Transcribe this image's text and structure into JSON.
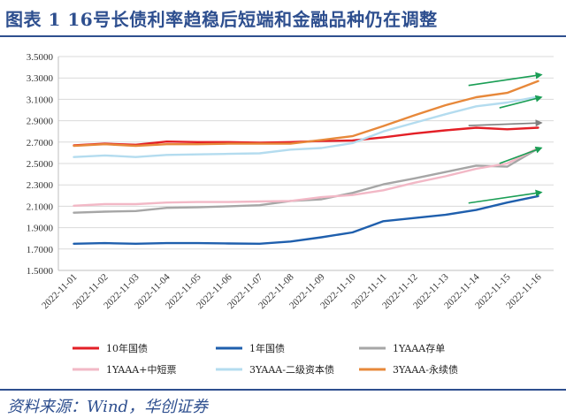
{
  "figure": {
    "title": "图表 1  16号长债利率趋稳后短端和金融品种仍在调整",
    "source": "资料来源：Wind，华创证券"
  },
  "chart_data": {
    "type": "line",
    "x": [
      "2022-11-01",
      "2022-11-02",
      "2022-11-03",
      "2022-11-04",
      "2022-11-05",
      "2022-11-06",
      "2022-11-07",
      "2022-11-08",
      "2022-11-09",
      "2022-11-10",
      "2022-11-11",
      "2022-11-12",
      "2022-11-13",
      "2022-11-14",
      "2022-11-15",
      "2022-11-16"
    ],
    "ylim": [
      1.5,
      3.5
    ],
    "yticks": [
      "1.5000",
      "1.7000",
      "1.9000",
      "2.1000",
      "2.3000",
      "2.5000",
      "2.7000",
      "2.9000",
      "3.1000",
      "3.3000",
      "3.5000"
    ],
    "grid": true,
    "legend_position": "bottom",
    "series": [
      {
        "name": "10年国债",
        "color": "#e31f26",
        "values": [
          2.67,
          2.685,
          2.675,
          2.705,
          2.7,
          2.7,
          2.695,
          2.7,
          2.71,
          2.715,
          2.745,
          2.78,
          2.81,
          2.835,
          2.82,
          2.835
        ]
      },
      {
        "name": "1年国债",
        "color": "#1f5fad",
        "values": [
          1.75,
          1.755,
          1.75,
          1.755,
          1.755,
          1.752,
          1.75,
          1.77,
          1.81,
          1.855,
          1.96,
          1.99,
          2.02,
          2.065,
          2.135,
          2.195
        ]
      },
      {
        "name": "1YAAA存单",
        "color": "#a6a6a6",
        "values": [
          2.04,
          2.05,
          2.055,
          2.085,
          2.09,
          2.1,
          2.11,
          2.15,
          2.165,
          2.225,
          2.305,
          2.36,
          2.42,
          2.48,
          2.47,
          2.64
        ]
      },
      {
        "name": "1YAAA+中短票",
        "color": "#f2b8c6",
        "values": [
          2.105,
          2.12,
          2.12,
          2.135,
          2.14,
          2.14,
          2.145,
          2.15,
          2.185,
          2.205,
          2.25,
          2.32,
          2.38,
          2.45,
          2.5,
          2.645
        ]
      },
      {
        "name": "3YAAA-二级资本债",
        "color": "#b4dcef",
        "values": [
          2.56,
          2.575,
          2.56,
          2.58,
          2.585,
          2.59,
          2.595,
          2.63,
          2.645,
          2.69,
          2.8,
          2.88,
          2.96,
          3.035,
          3.07,
          3.125
        ]
      },
      {
        "name": "3YAAA-永续债",
        "color": "#e7883a",
        "values": [
          2.665,
          2.68,
          2.665,
          2.68,
          2.68,
          2.685,
          2.685,
          2.685,
          2.72,
          2.755,
          2.85,
          2.95,
          3.045,
          3.12,
          3.16,
          3.27
        ]
      }
    ],
    "annotations": [
      {
        "type": "arrow",
        "color": "#1a9e55",
        "from": [
          "2022-11-14",
          3.23
        ],
        "to": [
          "2022-11-16",
          3.33
        ]
      },
      {
        "type": "arrow",
        "color": "#1a9e55",
        "from": [
          "2022-11-15",
          3.02
        ],
        "to": [
          "2022-11-16",
          3.12
        ]
      },
      {
        "type": "arrow",
        "color": "#7f7f7f",
        "from": [
          "2022-11-14",
          2.855
        ],
        "to": [
          "2022-11-16",
          2.88
        ]
      },
      {
        "type": "arrow",
        "color": "#1a9e55",
        "from": [
          "2022-11-15",
          2.5
        ],
        "to": [
          "2022-11-16",
          2.645
        ]
      },
      {
        "type": "arrow",
        "color": "#1a9e55",
        "from": [
          "2022-11-14",
          2.13
        ],
        "to": [
          "2022-11-16",
          2.23
        ]
      }
    ]
  }
}
